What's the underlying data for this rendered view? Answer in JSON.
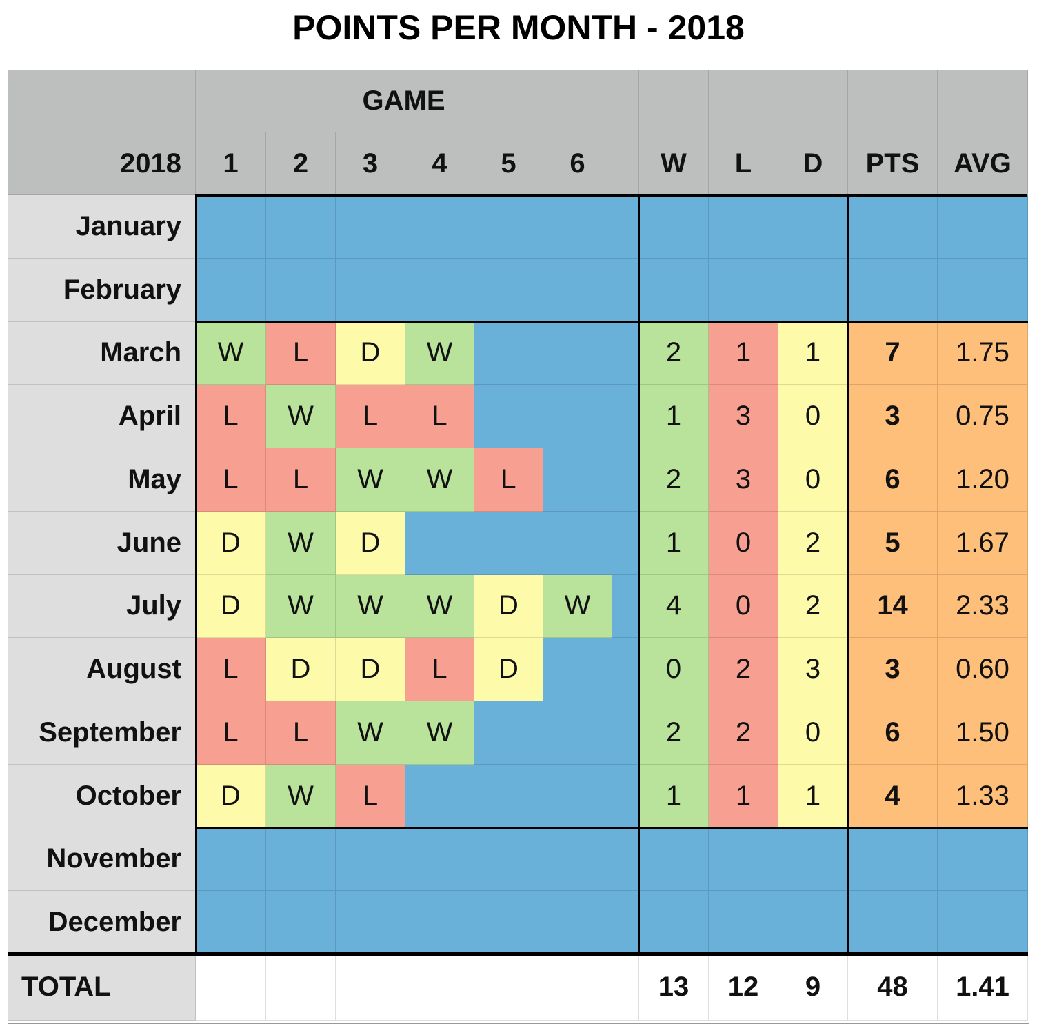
{
  "chart_data": {
    "type": "table",
    "title": "POINTS PER MONTH - 2018",
    "game_header": "GAME",
    "year_label": "2018",
    "game_numbers": [
      "1",
      "2",
      "3",
      "4",
      "5",
      "6"
    ],
    "stat_headers": [
      "W",
      "L",
      "D",
      "PTS",
      "AVG"
    ],
    "months": [
      {
        "name": "January",
        "games": [],
        "W": "",
        "L": "",
        "D": "",
        "PTS": "",
        "AVG": ""
      },
      {
        "name": "February",
        "games": [],
        "W": "",
        "L": "",
        "D": "",
        "PTS": "",
        "AVG": ""
      },
      {
        "name": "March",
        "games": [
          "W",
          "L",
          "D",
          "W"
        ],
        "W": "2",
        "L": "1",
        "D": "1",
        "PTS": "7",
        "AVG": "1.75"
      },
      {
        "name": "April",
        "games": [
          "L",
          "W",
          "L",
          "L"
        ],
        "W": "1",
        "L": "3",
        "D": "0",
        "PTS": "3",
        "AVG": "0.75"
      },
      {
        "name": "May",
        "games": [
          "L",
          "L",
          "W",
          "W",
          "L"
        ],
        "W": "2",
        "L": "3",
        "D": "0",
        "PTS": "6",
        "AVG": "1.20"
      },
      {
        "name": "June",
        "games": [
          "D",
          "W",
          "D"
        ],
        "W": "1",
        "L": "0",
        "D": "2",
        "PTS": "5",
        "AVG": "1.67"
      },
      {
        "name": "July",
        "games": [
          "D",
          "W",
          "W",
          "W",
          "D",
          "W"
        ],
        "W": "4",
        "L": "0",
        "D": "2",
        "PTS": "14",
        "AVG": "2.33"
      },
      {
        "name": "August",
        "games": [
          "L",
          "D",
          "D",
          "L",
          "D"
        ],
        "W": "0",
        "L": "2",
        "D": "3",
        "PTS": "3",
        "AVG": "0.60"
      },
      {
        "name": "September",
        "games": [
          "L",
          "L",
          "W",
          "W"
        ],
        "W": "2",
        "L": "2",
        "D": "0",
        "PTS": "6",
        "AVG": "1.50"
      },
      {
        "name": "October",
        "games": [
          "D",
          "W",
          "L"
        ],
        "W": "1",
        "L": "1",
        "D": "1",
        "PTS": "4",
        "AVG": "1.33"
      },
      {
        "name": "November",
        "games": [],
        "W": "",
        "L": "",
        "D": "",
        "PTS": "",
        "AVG": ""
      },
      {
        "name": "December",
        "games": [],
        "W": "",
        "L": "",
        "D": "",
        "PTS": "",
        "AVG": ""
      }
    ],
    "total": {
      "label": "TOTAL",
      "W": "13",
      "L": "12",
      "D": "9",
      "PTS": "48",
      "AVG": "1.41"
    }
  },
  "colors": {
    "win": "#b9e29b",
    "loss": "#f7a091",
    "draw": "#fdfba9",
    "points": "#fdbf7a",
    "empty": "#6ab1da",
    "header": "#bcbfbe",
    "month": "#dedede"
  }
}
